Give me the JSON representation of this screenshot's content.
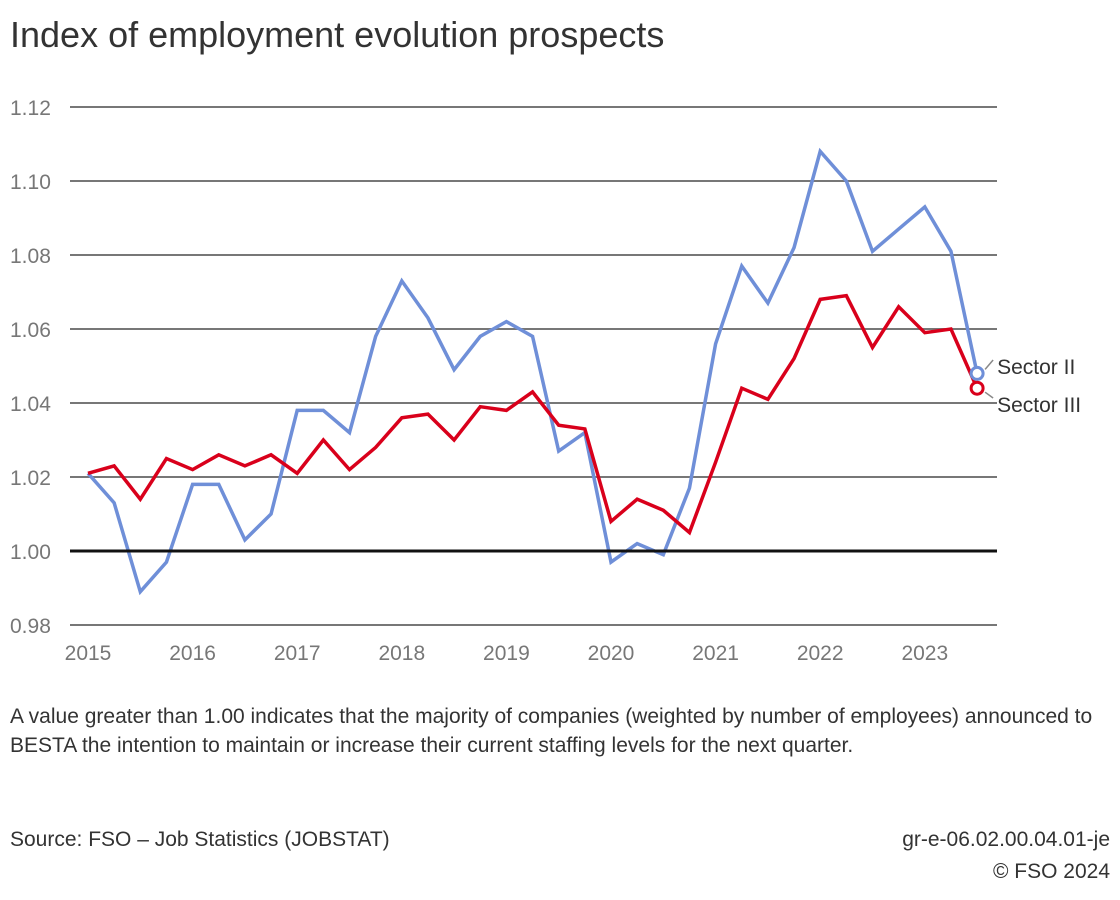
{
  "chart_data": {
    "type": "line",
    "title": "Index of employment evolution prospects",
    "xlabel": "",
    "ylabel": "",
    "ylim": [
      0.98,
      1.12
    ],
    "yticks": [
      "0.98",
      "1.00",
      "1.02",
      "1.04",
      "1.06",
      "1.08",
      "1.10",
      "1.12"
    ],
    "xticks": [
      "2015",
      "2016",
      "2017",
      "2018",
      "2019",
      "2020",
      "2021",
      "2022",
      "2023"
    ],
    "grid": true,
    "reference_line": 1.0,
    "x": [
      "2015Q1",
      "2015Q2",
      "2015Q3",
      "2015Q4",
      "2016Q1",
      "2016Q2",
      "2016Q3",
      "2016Q4",
      "2017Q1",
      "2017Q2",
      "2017Q3",
      "2017Q4",
      "2018Q1",
      "2018Q2",
      "2018Q3",
      "2018Q4",
      "2019Q1",
      "2019Q2",
      "2019Q3",
      "2019Q4",
      "2020Q1",
      "2020Q2",
      "2020Q3",
      "2020Q4",
      "2021Q1",
      "2021Q2",
      "2021Q3",
      "2021Q4",
      "2022Q1",
      "2022Q2",
      "2022Q3",
      "2022Q4",
      "2023Q1",
      "2023Q2",
      "2023Q3"
    ],
    "series": [
      {
        "name": "Sector II",
        "color": "#6f8fd8",
        "values": [
          1.021,
          1.013,
          0.989,
          0.997,
          1.018,
          1.018,
          1.003,
          1.01,
          1.038,
          1.038,
          1.032,
          1.058,
          1.073,
          1.063,
          1.049,
          1.058,
          1.062,
          1.058,
          1.027,
          1.032,
          0.997,
          1.002,
          0.999,
          1.017,
          1.056,
          1.077,
          1.067,
          1.082,
          1.108,
          1.1,
          1.081,
          1.087,
          1.093,
          1.081,
          1.048
        ]
      },
      {
        "name": "Sector III",
        "color": "#d9001b",
        "values": [
          1.021,
          1.023,
          1.014,
          1.025,
          1.022,
          1.026,
          1.023,
          1.026,
          1.021,
          1.03,
          1.022,
          1.028,
          1.036,
          1.037,
          1.03,
          1.039,
          1.038,
          1.043,
          1.034,
          1.033,
          1.008,
          1.014,
          1.011,
          1.005,
          1.024,
          1.044,
          1.041,
          1.052,
          1.068,
          1.069,
          1.055,
          1.066,
          1.059,
          1.06,
          1.044
        ]
      }
    ]
  },
  "note": "A value greater than 1.00 indicates that the majority of companies (weighted by number of employees) announced to BESTA the intention to maintain or increase their current staffing levels for the next quarter.",
  "source": "Source: FSO – Job Statistics (JOBSTAT)",
  "code": "gr-e-06.02.00.04.01-je",
  "copyright": "© FSO 2024"
}
